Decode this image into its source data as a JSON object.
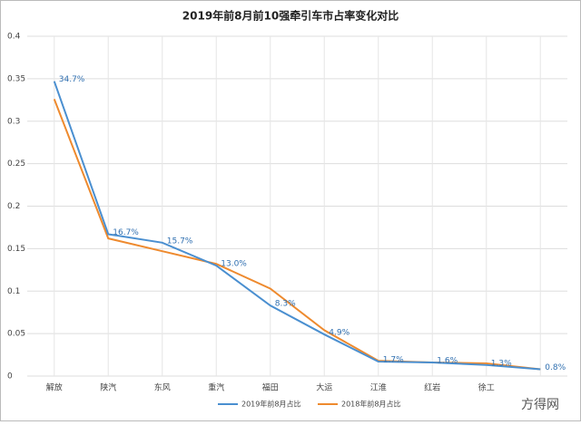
{
  "chart_data": {
    "type": "line",
    "title": "2019年前8月前10强牵引车市占率变化对比",
    "categories": [
      "解放",
      "陕汽",
      "东风",
      "重汽",
      "福田",
      "大运",
      "江淮",
      "红岩",
      "徐工",
      null
    ],
    "series": [
      {
        "name": "2019年前8月占比",
        "color": "#4a8fd0",
        "values": [
          0.347,
          0.167,
          0.157,
          0.13,
          0.083,
          0.049,
          0.017,
          0.016,
          0.013,
          0.008
        ],
        "value_labels": [
          "34.7%",
          "16.7%",
          "15.7%",
          "13.0%",
          "8.3%",
          "4.9%",
          "1.7%",
          "1.6%",
          "1.3%",
          "0.8%"
        ]
      },
      {
        "name": "2018年前8月占比",
        "color": "#ee8a2e",
        "values": [
          0.326,
          0.162,
          0.147,
          0.132,
          0.103,
          0.054,
          0.018,
          0.016,
          0.015,
          0.008
        ]
      }
    ],
    "ylim": [
      0,
      0.4
    ],
    "yticks": [
      0,
      0.05,
      0.1,
      0.15,
      0.2,
      0.25,
      0.3,
      0.35,
      0.4
    ],
    "grid": true,
    "legend": "bottom",
    "logo": "方得网"
  }
}
